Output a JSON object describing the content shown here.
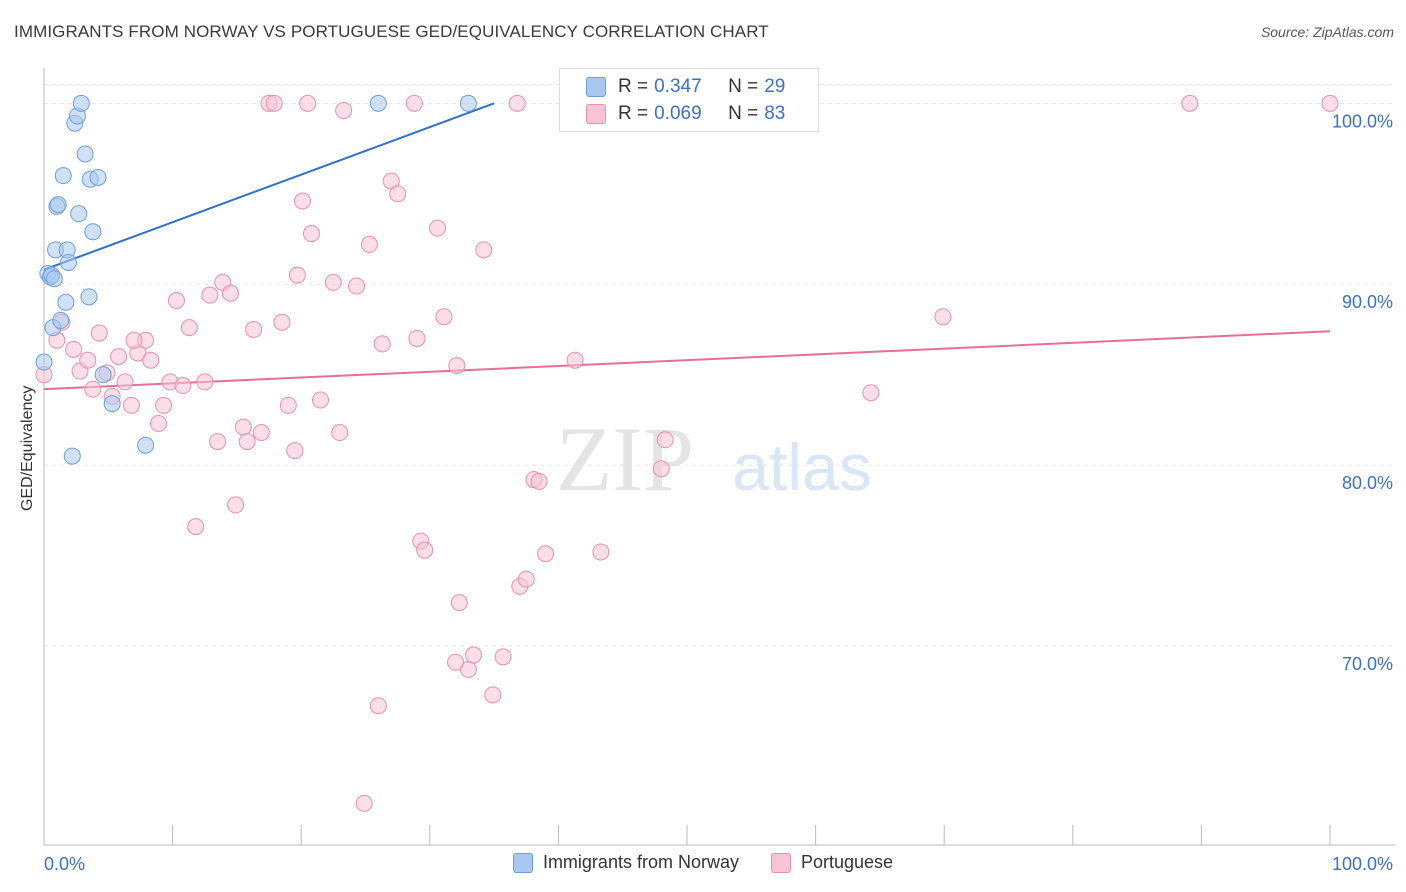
{
  "header": {
    "title": "IMMIGRANTS FROM NORWAY VS PORTUGUESE GED/EQUIVALENCY CORRELATION CHART",
    "source": "Source: ZipAtlas.com"
  },
  "watermark": {
    "zip": "ZIP",
    "atlas": "atlas"
  },
  "legend": {
    "rows": [
      {
        "r_label": "R =",
        "r_value": "0.347",
        "n_label": "N =",
        "n_value": "29"
      },
      {
        "r_label": "R =",
        "r_value": "0.069",
        "n_label": "N =",
        "n_value": "83"
      }
    ]
  },
  "bottom_legend": {
    "series1": "Immigrants from Norway",
    "series2": "Portuguese"
  },
  "colors": {
    "norway_fill": "#a9c8f0",
    "norway_stroke": "#6d9fd9",
    "norway_line": "#2f6fcd",
    "portuguese_fill": "#f8c3d4",
    "portuguese_stroke": "#ea8fae",
    "portuguese_line": "#e46f99",
    "tick_label": "#3a70c8"
  },
  "chart_data": {
    "type": "scatter",
    "title": "IMMIGRANTS FROM NORWAY VS PORTUGUESE GED/EQUIVALENCY CORRELATION CHART",
    "xlabel": "",
    "ylabel": "GED/Equivalency",
    "xlim": [
      0,
      100
    ],
    "ylim": [
      59.0,
      103.5
    ],
    "x_tick_labels": [
      "0.0%",
      "100.0%"
    ],
    "y_ticks": [
      70,
      80,
      90,
      100
    ],
    "y_tick_labels": [
      "70.0%",
      "80.0%",
      "90.0%",
      "100.0%"
    ],
    "grid": true,
    "legend_position": "top-center",
    "series": [
      {
        "name": "Immigrants from Norway",
        "R": 0.347,
        "N": 29,
        "trend": {
          "x0": 0,
          "y0": 90.8,
          "x1": 35.0,
          "y1": 100.0
        },
        "points": [
          [
            0.0,
            85.7
          ],
          [
            0.3,
            90.6
          ],
          [
            0.5,
            90.4
          ],
          [
            0.6,
            90.5
          ],
          [
            0.7,
            87.6
          ],
          [
            0.9,
            91.9
          ],
          [
            1.0,
            94.3
          ],
          [
            1.1,
            94.4
          ],
          [
            1.3,
            88.0
          ],
          [
            1.5,
            96.0
          ],
          [
            1.7,
            89.0
          ],
          [
            1.8,
            91.9
          ],
          [
            1.9,
            91.2
          ],
          [
            2.2,
            80.5
          ],
          [
            2.4,
            98.9
          ],
          [
            2.6,
            99.3
          ],
          [
            2.7,
            93.9
          ],
          [
            2.9,
            100.0
          ],
          [
            3.2,
            97.2
          ],
          [
            3.5,
            89.3
          ],
          [
            3.6,
            95.8
          ],
          [
            3.8,
            92.9
          ],
          [
            4.2,
            95.9
          ],
          [
            4.6,
            85.0
          ],
          [
            5.3,
            83.4
          ],
          [
            7.9,
            81.1
          ],
          [
            26.0,
            100.0
          ],
          [
            33.0,
            100.0
          ],
          [
            0.8,
            90.3
          ]
        ]
      },
      {
        "name": "Portuguese",
        "R": 0.069,
        "N": 83,
        "trend": {
          "x0": 0,
          "y0": 84.2,
          "x1": 100,
          "y1": 87.4
        },
        "points": [
          [
            0.0,
            85.0
          ],
          [
            1.0,
            86.9
          ],
          [
            1.4,
            87.9
          ],
          [
            2.3,
            86.4
          ],
          [
            2.8,
            85.2
          ],
          [
            3.4,
            85.8
          ],
          [
            3.8,
            84.2
          ],
          [
            4.3,
            87.3
          ],
          [
            4.9,
            85.1
          ],
          [
            5.3,
            83.8
          ],
          [
            5.8,
            86.0
          ],
          [
            6.3,
            84.6
          ],
          [
            6.8,
            83.3
          ],
          [
            7.3,
            86.2
          ],
          [
            7.9,
            86.9
          ],
          [
            8.3,
            85.8
          ],
          [
            8.9,
            82.3
          ],
          [
            9.3,
            83.3
          ],
          [
            9.8,
            84.6
          ],
          [
            10.3,
            89.1
          ],
          [
            10.8,
            84.4
          ],
          [
            11.3,
            87.6
          ],
          [
            11.8,
            76.6
          ],
          [
            12.5,
            84.6
          ],
          [
            12.9,
            89.4
          ],
          [
            13.5,
            81.3
          ],
          [
            13.9,
            90.1
          ],
          [
            14.5,
            89.5
          ],
          [
            14.9,
            77.8
          ],
          [
            15.5,
            82.1
          ],
          [
            15.8,
            81.3
          ],
          [
            16.3,
            87.5
          ],
          [
            16.9,
            81.8
          ],
          [
            17.5,
            100.0
          ],
          [
            17.9,
            100.0
          ],
          [
            18.5,
            87.9
          ],
          [
            19.0,
            83.3
          ],
          [
            19.5,
            80.8
          ],
          [
            19.7,
            90.5
          ],
          [
            20.1,
            94.6
          ],
          [
            20.8,
            92.8
          ],
          [
            21.5,
            83.6
          ],
          [
            22.5,
            90.1
          ],
          [
            23.0,
            81.8
          ],
          [
            23.3,
            99.6
          ],
          [
            24.3,
            89.9
          ],
          [
            25.3,
            92.2
          ],
          [
            26.0,
            66.7
          ],
          [
            26.3,
            86.7
          ],
          [
            27.0,
            95.7
          ],
          [
            27.5,
            95.0
          ],
          [
            28.8,
            100.0
          ],
          [
            29.0,
            87.0
          ],
          [
            29.3,
            75.8
          ],
          [
            29.6,
            75.3
          ],
          [
            30.6,
            93.1
          ],
          [
            31.1,
            88.2
          ],
          [
            32.1,
            85.5
          ],
          [
            32.3,
            72.4
          ],
          [
            33.0,
            68.7
          ],
          [
            33.4,
            69.5
          ],
          [
            34.2,
            91.9
          ],
          [
            34.9,
            67.3
          ],
          [
            35.7,
            69.4
          ],
          [
            36.8,
            100.0
          ],
          [
            37.0,
            73.3
          ],
          [
            37.5,
            73.7
          ],
          [
            38.1,
            79.2
          ],
          [
            38.5,
            79.1
          ],
          [
            39.0,
            75.1
          ],
          [
            41.3,
            85.8
          ],
          [
            43.3,
            75.2
          ],
          [
            45.6,
            100.0
          ],
          [
            48.0,
            79.8
          ],
          [
            48.3,
            81.4
          ],
          [
            64.3,
            84.0
          ],
          [
            69.9,
            88.2
          ],
          [
            89.1,
            100.0
          ],
          [
            100.0,
            100.0
          ],
          [
            24.9,
            61.3
          ],
          [
            32.0,
            69.1
          ],
          [
            20.5,
            100.0
          ],
          [
            7.0,
            86.9
          ]
        ]
      }
    ]
  }
}
